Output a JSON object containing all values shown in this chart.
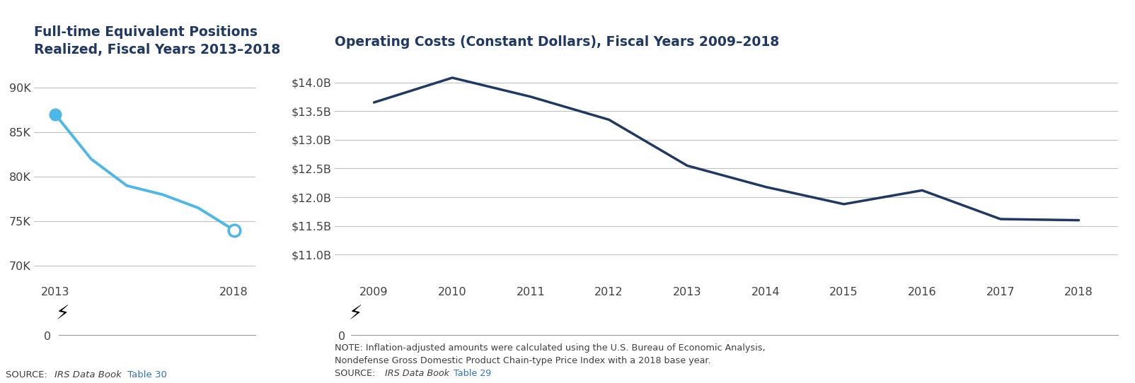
{
  "chart1": {
    "title_line1": "Full-time Equivalent Positions",
    "title_line2": "Realized, Fiscal Years 2013–2018",
    "x": [
      2013,
      2014,
      2015,
      2016,
      2017,
      2018
    ],
    "y": [
      87000,
      82000,
      79000,
      78000,
      76500,
      74000
    ],
    "yticks": [
      70000,
      75000,
      80000,
      85000,
      90000
    ],
    "ytick_labels": [
      "70K",
      "75K",
      "80K",
      "85K",
      "90K"
    ],
    "ylim": [
      68000,
      93000
    ],
    "xlim": [
      2012.4,
      2018.6
    ],
    "xticks": [
      2013,
      2018
    ],
    "line_color": "#4db8e8",
    "marker_start_color": "#4db8e8",
    "marker_end_face": "#ffffff",
    "marker_end_edge": "#4db8e8",
    "source_link_color": "#2e75b6"
  },
  "chart2": {
    "title": "Operating Costs (Constant Dollars), Fiscal Years 2009–2018",
    "x": [
      2009,
      2010,
      2011,
      2012,
      2013,
      2014,
      2015,
      2016,
      2017,
      2018
    ],
    "y": [
      13.65,
      14.08,
      13.75,
      13.35,
      12.55,
      12.18,
      11.88,
      12.12,
      11.62,
      11.6
    ],
    "yticks": [
      11.0,
      11.5,
      12.0,
      12.5,
      13.0,
      13.5,
      14.0
    ],
    "ytick_labels": [
      "$11.0B",
      "$11.5B",
      "$12.0B",
      "$12.5B",
      "$13.0B",
      "$13.5B",
      "$14.0B"
    ],
    "ylim": [
      10.5,
      14.5
    ],
    "xlim": [
      2008.5,
      2018.5
    ],
    "xticks": [
      2009,
      2010,
      2011,
      2012,
      2013,
      2014,
      2015,
      2016,
      2017,
      2018
    ],
    "line_color": "#1f3864",
    "note_line1": "NOTE: Inflation-adjusted amounts were calculated using the U.S. Bureau of Economic Analysis,",
    "note_line2": "Nondefense Gross Domestic Product Chain-type Price Index with a 2018 base year.",
    "source_link_color": "#2e75b6"
  },
  "title_color": "#1f3864",
  "axis_color": "#999999",
  "grid_color": "#c0c0c0",
  "tick_label_color": "#404040",
  "note_color": "#404040",
  "background_color": "#ffffff"
}
